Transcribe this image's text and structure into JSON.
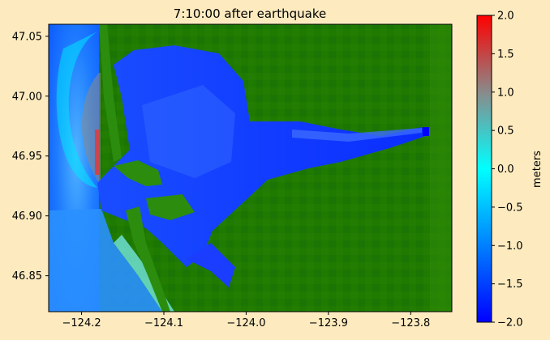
{
  "chart_data": {
    "type": "heatmap",
    "title": "7:10:00 after earthquake",
    "xlabel": "",
    "ylabel": "",
    "xlim": [
      -124.24,
      -123.75
    ],
    "ylim": [
      46.82,
      47.06
    ],
    "x_ticks": [
      -124.2,
      -124.1,
      -124.0,
      -123.9,
      -123.8
    ],
    "x_tick_labels": [
      "−124.2",
      "−124.1",
      "−124.0",
      "−123.9",
      "−123.8"
    ],
    "y_ticks": [
      46.85,
      46.9,
      46.95,
      47.0,
      47.05
    ],
    "y_tick_labels": [
      "46.85",
      "46.90",
      "46.95",
      "47.00",
      "47.05"
    ],
    "colorbar": {
      "label": "meters",
      "vmin": -2.0,
      "vmax": 2.0,
      "ticks": [
        2.0,
        1.5,
        1.0,
        0.5,
        0.0,
        -0.5,
        -1.0,
        -1.5,
        -2.0
      ],
      "tick_labels": [
        "2.0",
        "1.5",
        "1.0",
        "0.5",
        "0.0",
        "−0.5",
        "−1.0",
        "−1.5",
        "−2.0"
      ],
      "colormap_stops": [
        "#0000ff",
        "#0080ff",
        "#00ffff",
        "#8a8a8a",
        "#ff0000"
      ]
    },
    "land_color": "#1f7a00",
    "grid": false
  }
}
